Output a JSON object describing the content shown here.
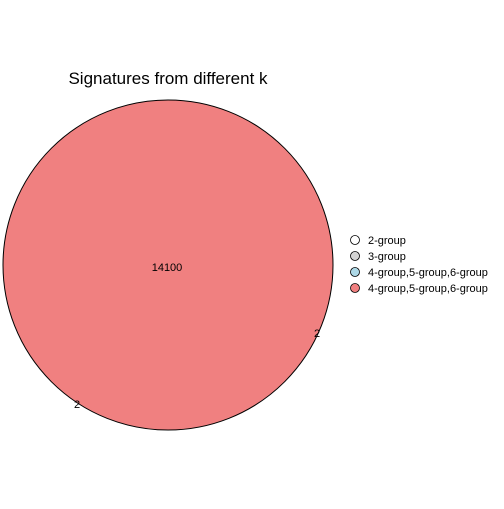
{
  "chart_data": {
    "type": "venn",
    "title": "Signatures from different k",
    "legend_position": "right",
    "sets": [
      {
        "name": "2-group",
        "color": "#ffffff"
      },
      {
        "name": "3-group",
        "color": "#d3d3d3"
      },
      {
        "name": "4-group,5-group,6-group",
        "color": "#add8e6"
      },
      {
        "name": "4-group,5-group,6-group",
        "color": "#f08080"
      }
    ],
    "region_labels": [
      {
        "text": "14100",
        "region": "center"
      },
      {
        "text": "2",
        "region": "lower-right"
      },
      {
        "text": "2",
        "region": "lower-left"
      }
    ]
  }
}
